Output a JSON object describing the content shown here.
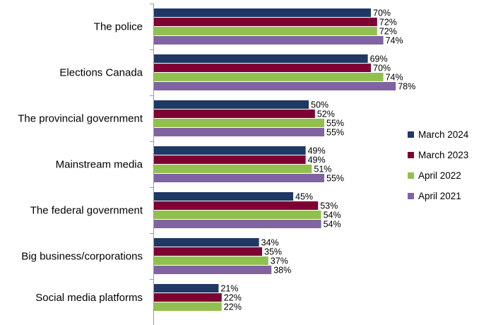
{
  "chart_data": {
    "type": "bar",
    "orientation": "horizontal",
    "categories": [
      "The police",
      "Elections Canada",
      "The provincial government",
      "Mainstream media",
      "The federal government",
      "Big business/corporations",
      "Social media platforms"
    ],
    "series": [
      {
        "name": "March 2024",
        "color": "#1f3864",
        "values": [
          70,
          69,
          50,
          49,
          45,
          34,
          21
        ]
      },
      {
        "name": "March 2023",
        "color": "#7f0032",
        "values": [
          72,
          70,
          52,
          49,
          53,
          35,
          22
        ]
      },
      {
        "name": "April 2022",
        "color": "#92c050",
        "values": [
          72,
          74,
          55,
          51,
          54,
          37,
          22
        ]
      },
      {
        "name": "April 2021",
        "color": "#8064a2",
        "values": [
          74,
          78,
          55,
          55,
          54,
          38,
          null
        ]
      }
    ],
    "value_suffix": "%",
    "xlim": [
      0,
      100
    ],
    "legend_position": "right",
    "grid": false
  }
}
